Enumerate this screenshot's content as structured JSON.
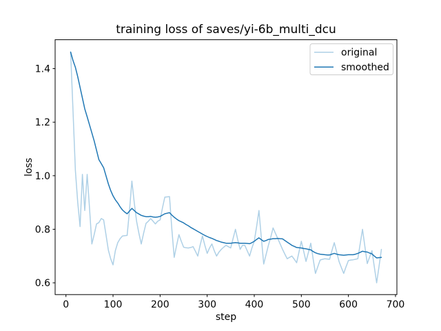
{
  "chart_data": {
    "type": "line",
    "title": "training loss of saves/yi-6b_multi_dcu",
    "xlabel": "step",
    "ylabel": "loss",
    "grid": false,
    "legend_position": "upper right",
    "background": "#ffffff",
    "axis_color": "#000000",
    "legend_border_color": "#cccccc",
    "xlim": [
      -23,
      703
    ],
    "ylim": [
      0.556,
      1.508
    ],
    "xticks": [
      0,
      100,
      200,
      300,
      400,
      500,
      600,
      700
    ],
    "yticks": [
      0.6,
      0.8,
      1.0,
      1.2,
      1.4
    ],
    "x": [
      10,
      15,
      20,
      25,
      30,
      35,
      40,
      45,
      50,
      55,
      60,
      65,
      70,
      75,
      80,
      85,
      90,
      95,
      100,
      105,
      110,
      115,
      120,
      125,
      130,
      135,
      140,
      145,
      150,
      155,
      160,
      165,
      170,
      175,
      180,
      185,
      190,
      195,
      200,
      205,
      210,
      215,
      220,
      225,
      230,
      235,
      240,
      245,
      250,
      255,
      260,
      265,
      270,
      275,
      280,
      285,
      290,
      295,
      300,
      305,
      310,
      315,
      320,
      325,
      330,
      335,
      340,
      345,
      350,
      355,
      360,
      365,
      370,
      375,
      380,
      385,
      390,
      395,
      400,
      405,
      410,
      415,
      420,
      425,
      430,
      435,
      440,
      445,
      450,
      455,
      460,
      465,
      470,
      475,
      480,
      485,
      490,
      495,
      500,
      505,
      510,
      515,
      520,
      525,
      530,
      535,
      540,
      545,
      550,
      555,
      560,
      565,
      570,
      575,
      580,
      585,
      590,
      595,
      600,
      605,
      610,
      615,
      620,
      625,
      630,
      635,
      640,
      645,
      650,
      655,
      660,
      665,
      670
    ],
    "series": [
      {
        "name": "original",
        "color": "#aed0e6",
        "line_width": 1.5,
        "values": [
          1.462,
          1.24,
          1.02,
          0.9,
          0.81,
          1.005,
          0.87,
          1.005,
          0.88,
          0.745,
          0.78,
          0.82,
          0.825,
          0.84,
          0.835,
          0.78,
          0.723,
          0.69,
          0.667,
          0.72,
          0.75,
          0.765,
          0.775,
          0.776,
          0.777,
          0.87,
          0.98,
          0.9,
          0.83,
          0.785,
          0.745,
          0.785,
          0.822,
          0.83,
          0.84,
          0.83,
          0.82,
          0.83,
          0.835,
          0.88,
          0.92,
          0.921,
          0.922,
          0.8,
          0.695,
          0.74,
          0.78,
          0.755,
          0.733,
          0.731,
          0.73,
          0.732,
          0.735,
          0.718,
          0.7,
          0.74,
          0.775,
          0.74,
          0.71,
          0.73,
          0.745,
          0.72,
          0.7,
          0.715,
          0.725,
          0.733,
          0.74,
          0.735,
          0.73,
          0.765,
          0.8,
          0.76,
          0.725,
          0.74,
          0.74,
          0.72,
          0.7,
          0.73,
          0.755,
          0.81,
          0.87,
          0.77,
          0.67,
          0.705,
          0.74,
          0.77,
          0.805,
          0.785,
          0.765,
          0.745,
          0.725,
          0.707,
          0.69,
          0.695,
          0.7,
          0.688,
          0.675,
          0.715,
          0.755,
          0.718,
          0.68,
          0.714,
          0.748,
          0.69,
          0.635,
          0.66,
          0.685,
          0.688,
          0.69,
          0.689,
          0.688,
          0.72,
          0.75,
          0.715,
          0.68,
          0.657,
          0.635,
          0.66,
          0.683,
          0.685,
          0.686,
          0.688,
          0.69,
          0.745,
          0.8,
          0.736,
          0.672,
          0.696,
          0.72,
          0.66,
          0.6,
          0.66,
          0.725
        ]
      },
      {
        "name": "smoothed",
        "color": "#1f77b4",
        "line_width": 1.5,
        "values": [
          1.462,
          1.43,
          1.405,
          1.37,
          1.33,
          1.29,
          1.25,
          1.22,
          1.19,
          1.16,
          1.13,
          1.095,
          1.06,
          1.045,
          1.03,
          1.0,
          0.97,
          0.945,
          0.925,
          0.91,
          0.898,
          0.884,
          0.872,
          0.864,
          0.858,
          0.868,
          0.878,
          0.87,
          0.862,
          0.857,
          0.852,
          0.849,
          0.847,
          0.847,
          0.848,
          0.846,
          0.845,
          0.846,
          0.848,
          0.853,
          0.858,
          0.86,
          0.862,
          0.853,
          0.845,
          0.838,
          0.832,
          0.828,
          0.824,
          0.818,
          0.813,
          0.807,
          0.802,
          0.797,
          0.792,
          0.787,
          0.782,
          0.777,
          0.773,
          0.769,
          0.766,
          0.762,
          0.758,
          0.755,
          0.752,
          0.75,
          0.748,
          0.748,
          0.748,
          0.749,
          0.75,
          0.749,
          0.748,
          0.748,
          0.748,
          0.747,
          0.746,
          0.75,
          0.755,
          0.762,
          0.768,
          0.761,
          0.755,
          0.758,
          0.762,
          0.763,
          0.765,
          0.765,
          0.766,
          0.765,
          0.764,
          0.758,
          0.752,
          0.746,
          0.74,
          0.736,
          0.732,
          0.731,
          0.73,
          0.728,
          0.727,
          0.725,
          0.723,
          0.717,
          0.712,
          0.709,
          0.707,
          0.706,
          0.705,
          0.704,
          0.704,
          0.707,
          0.71,
          0.707,
          0.705,
          0.704,
          0.703,
          0.704,
          0.705,
          0.705,
          0.705,
          0.707,
          0.71,
          0.714,
          0.718,
          0.716,
          0.715,
          0.711,
          0.708,
          0.7,
          0.693,
          0.694,
          0.695
        ]
      }
    ]
  }
}
